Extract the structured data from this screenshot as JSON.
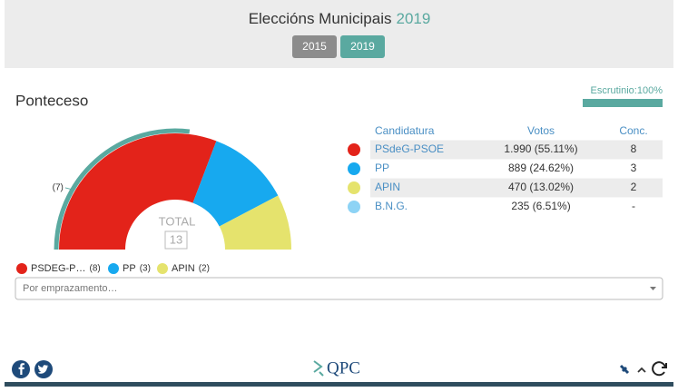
{
  "header": {
    "title": "Eleccións Municipais",
    "year": "2019",
    "buttons": [
      "2015",
      "2019"
    ],
    "active_button": 1
  },
  "place": "Ponteceso",
  "count": {
    "label": "Escrutinio:100%",
    "percent": 100
  },
  "table": {
    "columns": [
      "Candidatura",
      "Votos",
      "Conc."
    ],
    "rows": [
      {
        "party": "PSdeG-PSOE",
        "votes": "1.990 (55.11%)",
        "seats": "8"
      },
      {
        "party": "PP",
        "votes": "889 (24.62%)",
        "seats": "3"
      },
      {
        "party": "APIN",
        "votes": "470 (13.02%)",
        "seats": "2"
      },
      {
        "party": "B.N.G.",
        "votes": "235 (6.51%)",
        "seats": "-"
      }
    ],
    "colors": [
      "#e3231a",
      "#17a9ef",
      "#e5e36d",
      "#8dd3f5"
    ]
  },
  "hemicycle": {
    "seats": [
      8,
      3,
      2
    ],
    "colors": [
      "#e3231a",
      "#17a9ef",
      "#e5e36d"
    ],
    "total_label": "TOTAL",
    "total": 13,
    "majority": {
      "value": 7,
      "label": "(7)"
    },
    "majority_color": "#5aa9a0"
  },
  "legend": [
    {
      "name": "PSDEG-P…",
      "seats": "(8)"
    },
    {
      "name": "PP",
      "seats": "(3)"
    },
    {
      "name": "APIN",
      "seats": "(2)"
    }
  ],
  "dropdown": {
    "placeholder": "Por emprazamento…"
  },
  "footer": {
    "logo": "QPC"
  }
}
